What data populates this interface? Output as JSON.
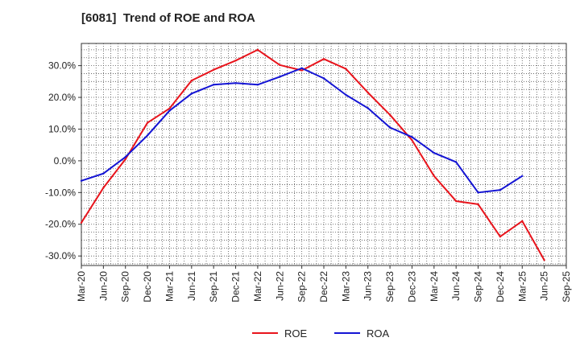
{
  "chart_data": {
    "type": "line",
    "title": "[6081]  Trend of ROE and ROA",
    "xlabel": "",
    "ylabel": "",
    "categories": [
      "Mar-20",
      "Jun-20",
      "Sep-20",
      "Dec-20",
      "Mar-21",
      "Jun-21",
      "Sep-21",
      "Dec-21",
      "Mar-22",
      "Jun-22",
      "Sep-22",
      "Dec-22",
      "Mar-23",
      "Jun-23",
      "Sep-23",
      "Dec-23",
      "Mar-24",
      "Jun-24",
      "Sep-24",
      "Dec-24",
      "Mar-25",
      "Jun-25",
      "Sep-25"
    ],
    "ylim": [
      -33.0,
      37.0
    ],
    "yticks": [
      30,
      20,
      10,
      0,
      -10,
      -20,
      -30
    ],
    "ytick_labels": [
      "30.0%",
      "20.0%",
      "10.0%",
      "0.0%",
      "-10.0%",
      "-20.0%",
      "-30.0%"
    ],
    "grid": true,
    "legend_position": "bottom-center",
    "series": [
      {
        "name": "ROE",
        "color": "#e8141c",
        "values": [
          -19.5,
          -8.5,
          0.5,
          12.0,
          16.5,
          25.3,
          28.7,
          31.6,
          35.0,
          30.2,
          28.5,
          32.1,
          29.0,
          21.5,
          14.5,
          6.5,
          -4.8,
          -12.7,
          -13.7,
          -23.9,
          -19.0,
          -31.3,
          null
        ]
      },
      {
        "name": "ROA",
        "color": "#1414d4",
        "values": [
          -6.3,
          -4.0,
          1.2,
          8.0,
          15.8,
          21.2,
          24.0,
          24.5,
          24.0,
          26.5,
          29.2,
          26.0,
          20.8,
          16.6,
          10.5,
          7.5,
          2.5,
          -0.4,
          -10.0,
          -9.2,
          -4.8,
          null,
          null
        ]
      }
    ]
  }
}
